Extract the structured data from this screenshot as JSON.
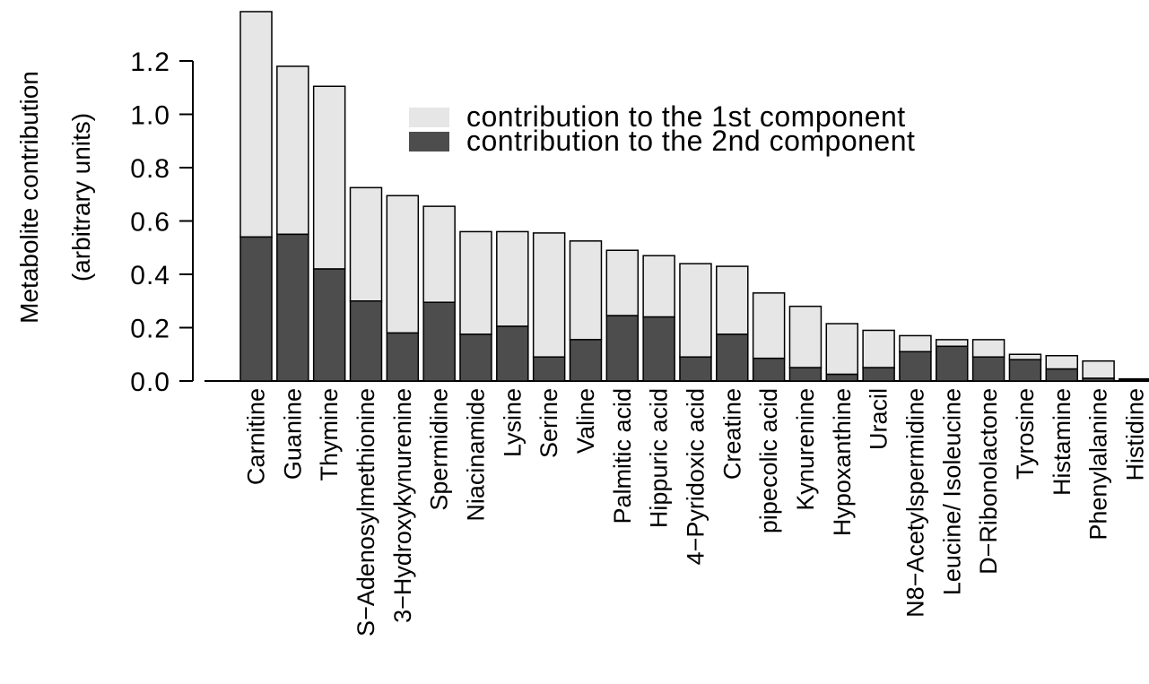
{
  "chart_data": {
    "type": "bar",
    "stacked": true,
    "ylabel": [
      "Metabolite contribution",
      "(arbitrary units)"
    ],
    "yticks": [
      "0.0",
      "0.2",
      "0.4",
      "0.6",
      "0.8",
      "1.0",
      "1.2"
    ],
    "ylim": [
      0,
      1.4
    ],
    "grid": false,
    "legend_position": "top-right",
    "categories": [
      "Carnitine",
      "Guanine",
      "Thymine",
      "S−Adenosylmethionine",
      "3−Hydroxykynurenine",
      "Spermidine",
      "Niacinamide",
      "Lysine",
      "Serine",
      "Valine",
      "Palmitic acid",
      "Hippuric acid",
      "4−Pyridoxic acid",
      "Creatine",
      "pipecolic acid",
      "Kynurenine",
      "Hypoxanthine",
      "Uracil",
      "N8−Acetylspermidine",
      "Leucine/ Isoleucine",
      "D−Ribonolactone",
      "Tyrosine",
      "Histamine",
      "Phenylalanine",
      "Histidine"
    ],
    "series": [
      {
        "name": "contribution to the 2nd component",
        "color": "#4d4d4d",
        "values": [
          0.54,
          0.55,
          0.42,
          0.3,
          0.18,
          0.295,
          0.175,
          0.205,
          0.09,
          0.155,
          0.245,
          0.24,
          0.09,
          0.175,
          0.085,
          0.05,
          0.025,
          0.05,
          0.11,
          0.13,
          0.09,
          0.08,
          0.045,
          0.01,
          0.005
        ]
      },
      {
        "name": "contribution to the 1st component",
        "color": "#e6e6e6",
        "values": [
          0.845,
          0.63,
          0.685,
          0.425,
          0.515,
          0.36,
          0.385,
          0.355,
          0.465,
          0.37,
          0.245,
          0.23,
          0.35,
          0.255,
          0.245,
          0.23,
          0.19,
          0.14,
          0.06,
          0.025,
          0.065,
          0.02,
          0.05,
          0.065,
          0.003
        ]
      }
    ]
  },
  "legend": {
    "first_label": "contribution to the 1st component",
    "second_label": "contribution to the 2nd component"
  }
}
